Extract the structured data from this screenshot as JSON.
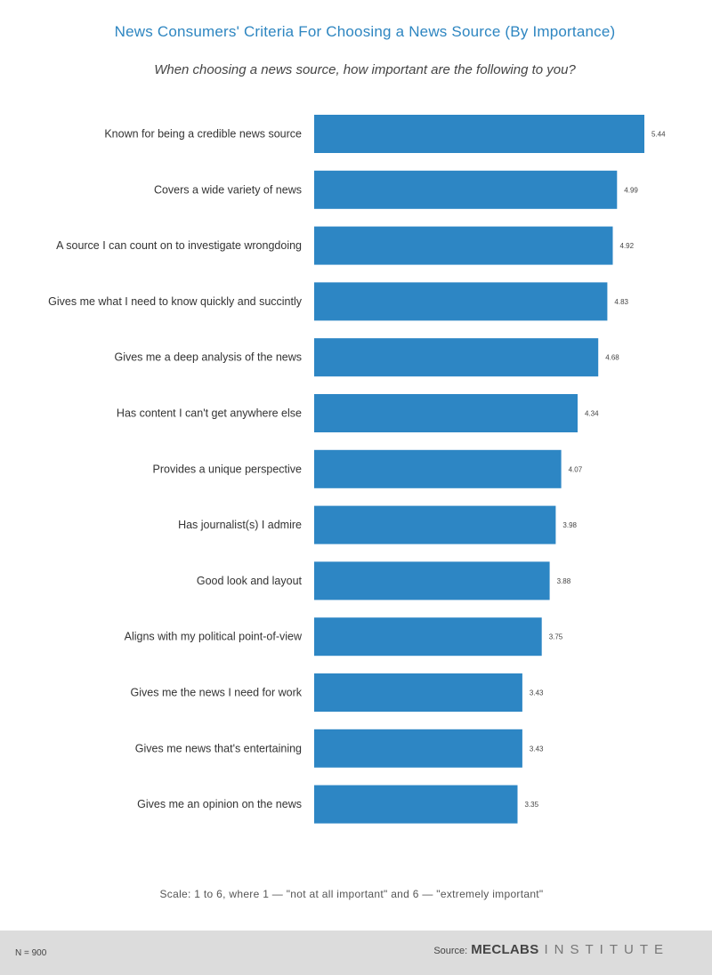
{
  "title": "News Consumers' Criteria For Choosing  a News Source (By Importance)",
  "subtitle": "When choosing a news source, how important are the following to you?",
  "colors": {
    "title": "#2e86c1",
    "subtitle": "#444444",
    "bar": "#2d86c4",
    "label": "#333333",
    "value": "#444444",
    "note": "#555555",
    "footer_bg": "#dcdcdc",
    "footer_text": "#444444",
    "brand_light": "#777777"
  },
  "chart_data": {
    "type": "bar",
    "orientation": "horizontal",
    "categories": [
      "Known for being a credible news source",
      "Covers a wide variety of news",
      "A source I can count on to investigate wrongdoing",
      "Gives me what I need to know quickly and succintly",
      "Gives me a deep analysis of the news",
      "Has content I can't get anywhere else",
      "Provides a unique perspective",
      "Has journalist(s) I admire",
      "Good look and layout",
      "Aligns with my political point-of-view",
      "Gives me the news I need for work",
      "Gives me news that's entertaining",
      "Gives me an opinion on the news"
    ],
    "values": [
      5.44,
      4.99,
      4.92,
      4.83,
      4.68,
      4.34,
      4.07,
      3.98,
      3.88,
      3.75,
      3.43,
      3.43,
      3.35
    ],
    "value_labels": [
      "5.44",
      "4.99",
      "4.92",
      "4.83",
      "4.68",
      "4.34",
      "4.07",
      "3.98",
      "3.88",
      "3.75",
      "3.43",
      "3.43",
      "3.35"
    ],
    "xlim": [
      0,
      5.44
    ],
    "grid": false,
    "legend": "none"
  },
  "scale_note": "Scale:  1 to 6,  where 1 — \"not at all important\" and 6 — \"extremely important\"",
  "footer": {
    "sample_size": "N = 900",
    "source_label": "Source:",
    "brand_strong": "MECLABS",
    "brand_light": "INSTITUTE"
  }
}
